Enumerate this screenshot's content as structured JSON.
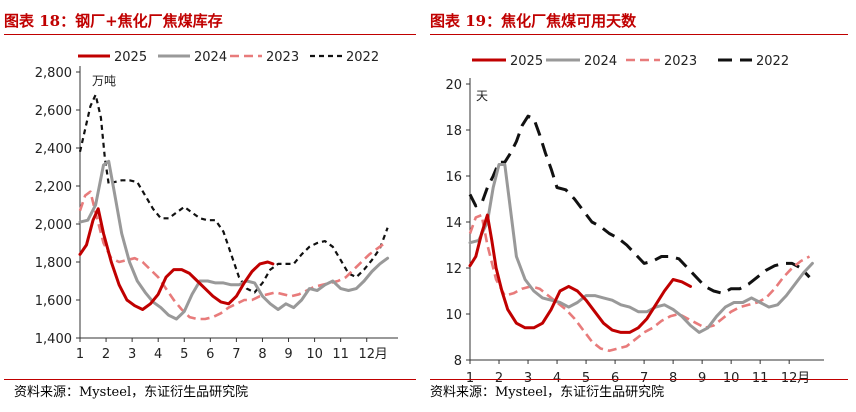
{
  "source_text": "资料来源：Mysteel，东证衍生品研究院",
  "colors": {
    "s2025": "#c00000",
    "s2024": "#999999",
    "s2023": "#e87b7b",
    "s2022": "#111111",
    "title": "#c00000"
  },
  "chart_data": [
    {
      "type": "line",
      "title": "图表 18：钢厂+焦化厂焦煤库存",
      "ylabel": "万吨",
      "xlabel": "月",
      "x_ticks": [
        "1",
        "2",
        "3",
        "4",
        "5",
        "6",
        "7",
        "8",
        "9",
        "10",
        "11",
        "12"
      ],
      "y_ticks": [
        "1,400",
        "1,600",
        "1,800",
        "2,000",
        "2,200",
        "2,400",
        "2,600",
        "2,800"
      ],
      "xlim": [
        1,
        13.2
      ],
      "ylim": [
        1400,
        2800
      ],
      "series": [
        {
          "name": "2025",
          "style": "solid-thick",
          "x": [
            1,
            1.25,
            1.5,
            1.7,
            1.9,
            2.2,
            2.5,
            2.8,
            3.1,
            3.4,
            3.7,
            4,
            4.3,
            4.6,
            4.9,
            5.2,
            5.5,
            5.8,
            6.1,
            6.4,
            6.7,
            7,
            7.3,
            7.6,
            7.9,
            8.2,
            8.4
          ],
          "y": [
            1840,
            1890,
            2020,
            2080,
            1950,
            1800,
            1680,
            1600,
            1570,
            1550,
            1580,
            1630,
            1720,
            1760,
            1760,
            1740,
            1700,
            1660,
            1620,
            1590,
            1580,
            1620,
            1690,
            1750,
            1790,
            1800,
            1790
          ]
        },
        {
          "name": "2024",
          "style": "solid",
          "x": [
            1,
            1.3,
            1.6,
            1.9,
            2.1,
            2.3,
            2.6,
            2.9,
            3.2,
            3.5,
            3.8,
            4.1,
            4.4,
            4.7,
            5,
            5.3,
            5.6,
            5.9,
            6.2,
            6.5,
            6.8,
            7.1,
            7.4,
            7.7,
            8,
            8.3,
            8.6,
            8.9,
            9.2,
            9.5,
            9.8,
            10.1,
            10.4,
            10.7,
            11,
            11.3,
            11.6,
            11.9,
            12.2,
            12.5,
            12.8
          ],
          "y": [
            2010,
            2020,
            2100,
            2310,
            2330,
            2180,
            1950,
            1800,
            1700,
            1640,
            1590,
            1560,
            1520,
            1500,
            1540,
            1630,
            1700,
            1700,
            1690,
            1690,
            1680,
            1680,
            1700,
            1690,
            1620,
            1580,
            1550,
            1580,
            1560,
            1600,
            1660,
            1650,
            1680,
            1700,
            1660,
            1650,
            1660,
            1700,
            1750,
            1790,
            1820
          ]
        },
        {
          "name": "2023",
          "style": "dashed",
          "x": [
            1,
            1.2,
            1.4,
            1.6,
            1.9,
            2.2,
            2.5,
            2.8,
            3.1,
            3.4,
            3.7,
            4,
            4.3,
            4.6,
            4.9,
            5.2,
            5.5,
            5.8,
            6.1,
            6.4,
            6.7,
            7,
            7.3,
            7.6,
            7.9,
            8.2,
            8.5,
            8.8,
            9.1,
            9.4,
            9.7,
            10,
            10.3,
            10.6,
            10.9,
            11.2,
            11.5,
            11.8,
            12.1,
            12.4,
            12.7
          ],
          "y": [
            2070,
            2150,
            2170,
            2060,
            1900,
            1820,
            1800,
            1810,
            1820,
            1800,
            1760,
            1720,
            1660,
            1600,
            1550,
            1510,
            1500,
            1500,
            1510,
            1530,
            1560,
            1580,
            1600,
            1600,
            1620,
            1630,
            1640,
            1630,
            1620,
            1630,
            1650,
            1670,
            1680,
            1690,
            1700,
            1720,
            1760,
            1800,
            1840,
            1870,
            1900
          ]
        },
        {
          "name": "2022",
          "style": "dotted",
          "x": [
            1,
            1.2,
            1.4,
            1.6,
            1.8,
            1.95,
            2.1,
            2.3,
            2.6,
            2.9,
            3.2,
            3.5,
            3.8,
            4.1,
            4.4,
            4.7,
            5,
            5.3,
            5.6,
            5.9,
            6.2,
            6.5,
            6.8,
            7.1,
            7.4,
            7.7,
            8,
            8.3,
            8.6,
            8.9,
            9.2,
            9.5,
            9.8,
            10.1,
            10.4,
            10.7,
            11,
            11.3,
            11.6,
            11.9,
            12.2,
            12.5,
            12.8
          ],
          "y": [
            2380,
            2500,
            2620,
            2680,
            2560,
            2350,
            2210,
            2220,
            2230,
            2230,
            2220,
            2150,
            2080,
            2030,
            2030,
            2060,
            2090,
            2060,
            2030,
            2020,
            2020,
            1960,
            1840,
            1720,
            1660,
            1640,
            1690,
            1760,
            1790,
            1790,
            1790,
            1840,
            1880,
            1900,
            1910,
            1880,
            1810,
            1740,
            1720,
            1760,
            1810,
            1870,
            1980
          ]
        }
      ]
    },
    {
      "type": "line",
      "title": "图表 19：焦化厂焦煤可用天数",
      "ylabel": "天",
      "xlabel": "月",
      "x_ticks": [
        "1",
        "2",
        "3",
        "4",
        "5",
        "6",
        "7",
        "8",
        "9",
        "10",
        "11",
        "12"
      ],
      "y_ticks": [
        "8",
        "10",
        "12",
        "14",
        "16",
        "18",
        "20"
      ],
      "xlim": [
        1,
        13.2
      ],
      "ylim": [
        8,
        20
      ],
      "series": [
        {
          "name": "2025",
          "style": "solid-thick",
          "x": [
            1,
            1.2,
            1.4,
            1.6,
            1.75,
            1.9,
            2.1,
            2.3,
            2.6,
            2.9,
            3.2,
            3.5,
            3.8,
            4.1,
            4.4,
            4.7,
            5,
            5.3,
            5.6,
            5.9,
            6.2,
            6.5,
            6.8,
            7.1,
            7.4,
            7.7,
            8,
            8.3,
            8.6
          ],
          "y": [
            12.1,
            12.5,
            13.5,
            14.3,
            13.2,
            12,
            11,
            10.2,
            9.6,
            9.4,
            9.4,
            9.6,
            10.2,
            11,
            11.2,
            11,
            10.6,
            10.1,
            9.6,
            9.3,
            9.2,
            9.2,
            9.4,
            9.8,
            10.4,
            11,
            11.5,
            11.4,
            11.2
          ]
        },
        {
          "name": "2024",
          "style": "solid",
          "x": [
            1,
            1.3,
            1.6,
            1.8,
            2,
            2.2,
            2.4,
            2.6,
            2.9,
            3.2,
            3.5,
            3.8,
            4.1,
            4.4,
            4.7,
            5,
            5.3,
            5.6,
            5.9,
            6.2,
            6.5,
            6.8,
            7.1,
            7.4,
            7.7,
            8,
            8.3,
            8.6,
            8.9,
            9.2,
            9.5,
            9.8,
            10.1,
            10.4,
            10.7,
            11,
            11.3,
            11.6,
            11.9,
            12.2,
            12.5,
            12.8
          ],
          "y": [
            13.1,
            13.2,
            14,
            15.5,
            16.5,
            16.5,
            14.5,
            12.5,
            11.5,
            11,
            10.7,
            10.6,
            10.5,
            10.3,
            10.5,
            10.8,
            10.8,
            10.7,
            10.6,
            10.4,
            10.3,
            10.1,
            10.1,
            10.3,
            10.4,
            10.2,
            9.9,
            9.5,
            9.2,
            9.4,
            9.9,
            10.3,
            10.5,
            10.5,
            10.7,
            10.5,
            10.3,
            10.4,
            10.8,
            11.3,
            11.8,
            12.2
          ]
        },
        {
          "name": "2023",
          "style": "dashed",
          "x": [
            1,
            1.2,
            1.4,
            1.6,
            1.9,
            2.2,
            2.5,
            2.8,
            3.1,
            3.4,
            3.7,
            4,
            4.3,
            4.6,
            4.9,
            5.2,
            5.5,
            5.8,
            6.1,
            6.4,
            6.7,
            7,
            7.3,
            7.6,
            7.9,
            8.2,
            8.5,
            8.8,
            9.1,
            9.4,
            9.7,
            10,
            10.3,
            10.6,
            10.9,
            11.2,
            11.5,
            11.8,
            12.1,
            12.4,
            12.7
          ],
          "y": [
            13.5,
            14.2,
            14.3,
            13,
            11.5,
            10.8,
            10.9,
            11.1,
            11.2,
            11.1,
            10.8,
            10.5,
            10.2,
            9.8,
            9.3,
            8.8,
            8.5,
            8.4,
            8.5,
            8.6,
            8.9,
            9.2,
            9.4,
            9.7,
            9.9,
            10,
            9.8,
            9.6,
            9.4,
            9.5,
            9.8,
            10.1,
            10.3,
            10.4,
            10.5,
            10.7,
            11.1,
            11.6,
            12,
            12.3,
            12.5
          ]
        },
        {
          "name": "2022",
          "style": "dash-long",
          "x": [
            1,
            1.2,
            1.4,
            1.6,
            1.8,
            2,
            2.2,
            2.4,
            2.6,
            2.8,
            3,
            3.2,
            3.4,
            3.6,
            3.8,
            4,
            4.3,
            4.6,
            4.9,
            5.2,
            5.5,
            5.8,
            6.1,
            6.4,
            6.7,
            7,
            7.3,
            7.6,
            7.9,
            8.2,
            8.5,
            8.8,
            9.1,
            9.4,
            9.7,
            10,
            10.3,
            10.6,
            10.9,
            11.2,
            11.5,
            11.8,
            12.1,
            12.4,
            12.7
          ],
          "y": [
            15.2,
            14.7,
            14.8,
            15.5,
            16,
            16.6,
            16.6,
            17,
            17.5,
            18.2,
            18.6,
            18.5,
            17.8,
            17,
            16.3,
            15.5,
            15.4,
            15,
            14.5,
            14,
            13.8,
            13.5,
            13.3,
            13,
            12.6,
            12.2,
            12.3,
            12.5,
            12.5,
            12.4,
            12,
            11.6,
            11.2,
            11,
            10.9,
            11.1,
            11.1,
            11.3,
            11.6,
            11.9,
            12.1,
            12.2,
            12.2,
            12,
            11.6
          ]
        }
      ]
    }
  ]
}
